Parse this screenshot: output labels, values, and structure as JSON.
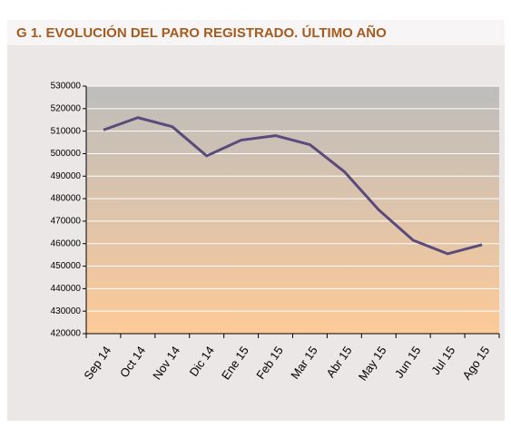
{
  "chart_data": {
    "type": "line",
    "title": "G 1. EVOLUCIÓN DEL PARO REGISTRADO. ÚLTIMO AÑO",
    "categories": [
      "Sep 14",
      "Oct 14",
      "Nov 14",
      "Dic 14",
      "Ene 15",
      "Feb 15",
      "Mar 15",
      "Abr 15",
      "May 15",
      "Jun 15",
      "Jul 15",
      "Ago 15"
    ],
    "series": [
      {
        "color": "#5b4a7c",
        "values": [
          510500,
          516000,
          512000,
          499000,
          506000,
          508000,
          504000,
          492000,
          475000,
          461500,
          455500,
          459500
        ]
      }
    ],
    "ylim": [
      420000,
      530000
    ],
    "yticks": [
      420000,
      430000,
      440000,
      450000,
      460000,
      470000,
      480000,
      490000,
      500000,
      510000,
      520000,
      530000
    ],
    "grid": true
  }
}
